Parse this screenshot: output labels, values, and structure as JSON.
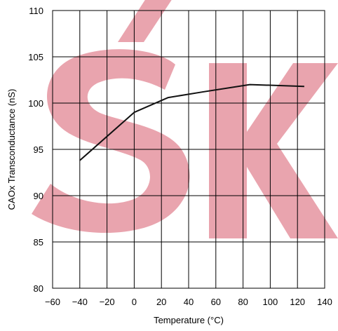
{
  "chart_data": {
    "type": "line",
    "title": "",
    "xlabel": "Temperature (°C)",
    "ylabel": "CAOx Transconductance (nS)",
    "xlim": [
      -60,
      140
    ],
    "ylim": [
      80,
      110
    ],
    "x_ticks": [
      -60,
      -40,
      -20,
      0,
      20,
      40,
      60,
      80,
      100,
      120,
      140
    ],
    "x_tick_labels": [
      "−60",
      "−40",
      "−20",
      "0",
      "20",
      "40",
      "60",
      "80",
      "100",
      "120",
      "140"
    ],
    "y_ticks": [
      80,
      85,
      90,
      95,
      100,
      105,
      110
    ],
    "y_tick_labels": [
      "80",
      "85",
      "90",
      "95",
      "100",
      "105",
      "110"
    ],
    "grid": true,
    "series": [
      {
        "x": [
          -40,
          0,
          25,
          50,
          85,
          125
        ],
        "y": [
          93.8,
          99.0,
          100.6,
          101.2,
          102.0,
          101.8
        ]
      }
    ]
  },
  "watermark": {
    "text": "SKY",
    "color": "#e9a4ae"
  },
  "colors": {
    "line": "#111111",
    "grid": "#000000",
    "text": "#000000"
  }
}
